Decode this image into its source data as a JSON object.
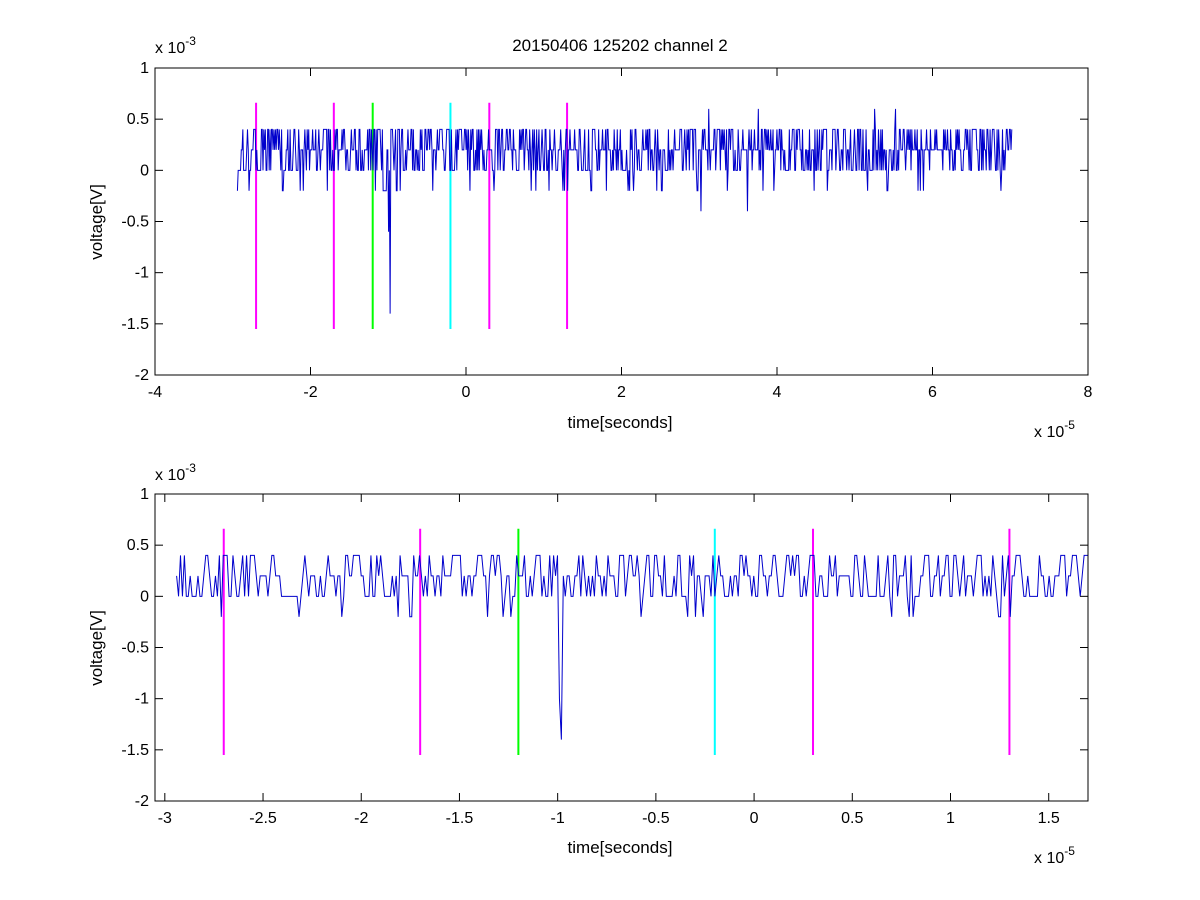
{
  "figure": {
    "title": "20150406 125202 channel 2"
  },
  "chart_data": [
    {
      "type": "line",
      "title": "20150406 125202 channel 2",
      "xlabel": "time[seconds]",
      "ylabel": "voltage[V]",
      "x_exponent_label": "x 10",
      "x_exponent_power": "-5",
      "y_exponent_label": "x 10",
      "y_exponent_power": "-3",
      "xlim": [
        -4e-05,
        8e-05
      ],
      "ylim": [
        -0.002,
        0.001
      ],
      "xticks": [
        -4e-05,
        -2e-05,
        0,
        2e-05,
        4e-05,
        6e-05,
        8e-05
      ],
      "xtick_labels": [
        "-4",
        "-2",
        "0",
        "2",
        "4",
        "6",
        "8"
      ],
      "yticks": [
        -0.002,
        -0.0015,
        -0.001,
        -0.0005,
        0,
        0.0005,
        0.001
      ],
      "ytick_labels": [
        "-2",
        "-1.5",
        "-1",
        "-0.5",
        "0",
        "0.5",
        "1"
      ],
      "grid": false,
      "series": [
        {
          "color": "#0000cc",
          "x_start": -2.94e-05,
          "x_end": 7.02e-05,
          "samples": 1000,
          "levels": [
            -0.0002,
            0,
            0.0002,
            0.0004
          ],
          "spikes": [
            {
              "x": -9.8e-06,
              "y": -0.0014
            },
            {
              "x": -1e-05,
              "y": -0.0006
            },
            {
              "x": 3.02e-05,
              "y": -0.0004
            },
            {
              "x": 3.62e-05,
              "y": -0.0004
            },
            {
              "x": 3.76e-05,
              "y": 0.0006
            },
            {
              "x": 3.12e-05,
              "y": 0.0006
            },
            {
              "x": 5.26e-05,
              "y": 0.0006
            },
            {
              "x": 5.52e-05,
              "y": 0.0006
            }
          ]
        }
      ],
      "vlines": [
        {
          "x": -2.7e-05,
          "color": "#ff00ff"
        },
        {
          "x": -1.7e-05,
          "color": "#ff00ff"
        },
        {
          "x": -1.2e-05,
          "color": "#00ff00"
        },
        {
          "x": -2e-06,
          "color": "#00ffff"
        },
        {
          "x": 3e-06,
          "color": "#ff00ff"
        },
        {
          "x": 1.3e-05,
          "color": "#ff00ff"
        }
      ],
      "vline_range": [
        -0.00155,
        0.00066
      ]
    },
    {
      "type": "line",
      "title": "",
      "xlabel": "time[seconds]",
      "ylabel": "voltage[V]",
      "x_exponent_label": "x 10",
      "x_exponent_power": "-5",
      "y_exponent_label": "x 10",
      "y_exponent_power": "-3",
      "xlim": [
        -3.05e-05,
        1.7e-05
      ],
      "ylim": [
        -0.002,
        0.001
      ],
      "xticks": [
        -3e-05,
        -2.5e-05,
        -2e-05,
        -1.5e-05,
        -1e-05,
        -5e-06,
        0,
        5e-06,
        1e-05,
        1.5e-05
      ],
      "xtick_labels": [
        "-3",
        "-2.5",
        "-2",
        "-1.5",
        "-1",
        "-0.5",
        "0",
        "0.5",
        "1",
        "1.5"
      ],
      "yticks": [
        -0.002,
        -0.0015,
        -0.001,
        -0.0005,
        0,
        0.0005,
        0.001
      ],
      "ytick_labels": [
        "-2",
        "-1.5",
        "-1",
        "-0.5",
        "0",
        "0.5",
        "1"
      ],
      "grid": false,
      "series": [
        {
          "color": "#0000cc",
          "x_start": -2.94e-05,
          "x_end": 1.7e-05,
          "samples": 470,
          "levels": [
            -0.0002,
            0,
            0.0002,
            0.0004
          ],
          "spikes": [
            {
              "x": -9.8e-06,
              "y": -0.0014
            },
            {
              "x": -9.9e-06,
              "y": -0.001
            },
            {
              "x": -2.71e-05,
              "y": -0.0002
            },
            {
              "x": -2.1e-05,
              "y": -0.0002
            },
            {
              "x": 1.3e-05,
              "y": -0.0002
            }
          ]
        }
      ],
      "vlines": [
        {
          "x": -2.7e-05,
          "color": "#ff00ff"
        },
        {
          "x": -1.7e-05,
          "color": "#ff00ff"
        },
        {
          "x": -1.2e-05,
          "color": "#00ff00"
        },
        {
          "x": -2e-06,
          "color": "#00ffff"
        },
        {
          "x": 3e-06,
          "color": "#ff00ff"
        },
        {
          "x": 1.3e-05,
          "color": "#ff00ff"
        }
      ],
      "vline_range": [
        -0.00155,
        0.00066
      ]
    }
  ]
}
